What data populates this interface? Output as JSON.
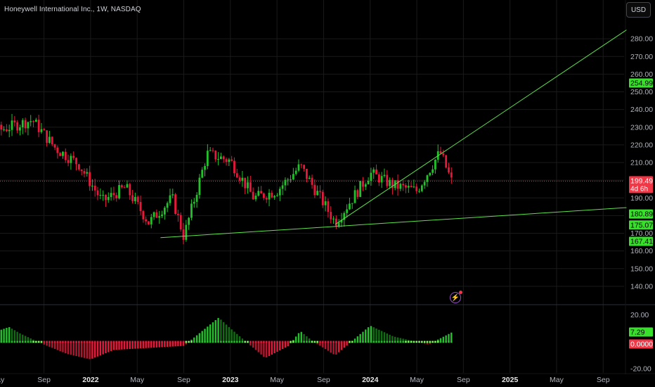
{
  "header": {
    "title": "Honeywell International Inc., 1W, NASDAQ",
    "currency_button": "USD"
  },
  "colors": {
    "up": "#22c32a",
    "down": "#e8183a",
    "trendline": "#5ee04c",
    "grid": "#1a1a1a",
    "price_line": "#f23645"
  },
  "icons": {
    "alert": "flash-icon"
  },
  "chart_data": {
    "type": "candlestick",
    "x_axis": {
      "ticks": [
        "May",
        "Sep",
        "2022",
        "May",
        "Sep",
        "2023",
        "May",
        "Sep",
        "2024",
        "May",
        "Sep",
        "2025",
        "May",
        "Sep"
      ],
      "bold": [
        "2022",
        "2023",
        "2024",
        "2025"
      ]
    },
    "y_axis": {
      "ticks": [
        "280.00",
        "270.00",
        "260.00",
        "250.00",
        "240.00",
        "230.00",
        "220.00",
        "210.00",
        "200.00",
        "190.00",
        "180.00",
        "170.00",
        "160.00",
        "150.00",
        "140.00"
      ],
      "range": [
        130,
        290
      ]
    },
    "price_labels": [
      {
        "value": "254.99",
        "kind": "green"
      },
      {
        "value": "199.49",
        "kind": "red",
        "sub": "4d 6h"
      },
      {
        "value": "180.89",
        "kind": "green"
      },
      {
        "value": "175.07",
        "kind": "green"
      },
      {
        "value": "167.41",
        "kind": "green"
      }
    ],
    "last_price": 199.49,
    "price_path": [
      [
        "2021-04",
        226
      ],
      [
        "2021-06",
        230
      ],
      [
        "2021-08",
        234
      ],
      [
        "2021-10",
        218
      ],
      [
        "2021-12",
        209
      ],
      [
        "2022-02",
        188
      ],
      [
        "2022-04",
        196
      ],
      [
        "2022-06",
        176
      ],
      [
        "2022-08",
        190
      ],
      [
        "2022-09",
        168
      ],
      [
        "2022-11",
        215
      ],
      [
        "2023-01",
        211
      ],
      [
        "2023-03",
        190
      ],
      [
        "2023-05",
        194
      ],
      [
        "2023-07",
        208
      ],
      [
        "2023-09",
        187
      ],
      [
        "2023-10",
        176
      ],
      [
        "2024-01",
        204
      ],
      [
        "2024-03",
        197
      ],
      [
        "2024-05",
        194
      ],
      [
        "2024-07",
        216
      ],
      [
        "2024-08",
        199
      ]
    ],
    "trendlines": [
      {
        "from": [
          "2022-07",
          167.5
        ],
        "to": [
          "2025-11",
          184.5
        ]
      },
      {
        "from": [
          "2023-10",
          175
        ],
        "to": [
          "2025-11",
          285
        ]
      }
    ],
    "oscillator": {
      "y_ticks": [
        "20.00",
        "-20.00"
      ],
      "range": [
        -22,
        26
      ],
      "labels": [
        {
          "value": "7.29",
          "kind": "green"
        },
        {
          "value": "0.0000",
          "kind": "red"
        }
      ],
      "path": [
        [
          "2021-04",
          5
        ],
        [
          "2021-06",
          11
        ],
        [
          "2021-07",
          6
        ],
        [
          "2021-09",
          -2
        ],
        [
          "2021-11",
          -9
        ],
        [
          "2022-01",
          -13
        ],
        [
          "2022-03",
          -6
        ],
        [
          "2022-05",
          -5
        ],
        [
          "2022-07",
          -4
        ],
        [
          "2022-09",
          -3
        ],
        [
          "2022-12",
          18
        ],
        [
          "2023-01",
          10
        ],
        [
          "2023-04",
          -12
        ],
        [
          "2023-06",
          -3
        ],
        [
          "2023-07",
          8
        ],
        [
          "2023-08",
          1
        ],
        [
          "2023-10",
          -10
        ],
        [
          "2024-01",
          12
        ],
        [
          "2024-03",
          4
        ],
        [
          "2024-06",
          -2
        ],
        [
          "2024-08",
          7
        ]
      ]
    }
  }
}
